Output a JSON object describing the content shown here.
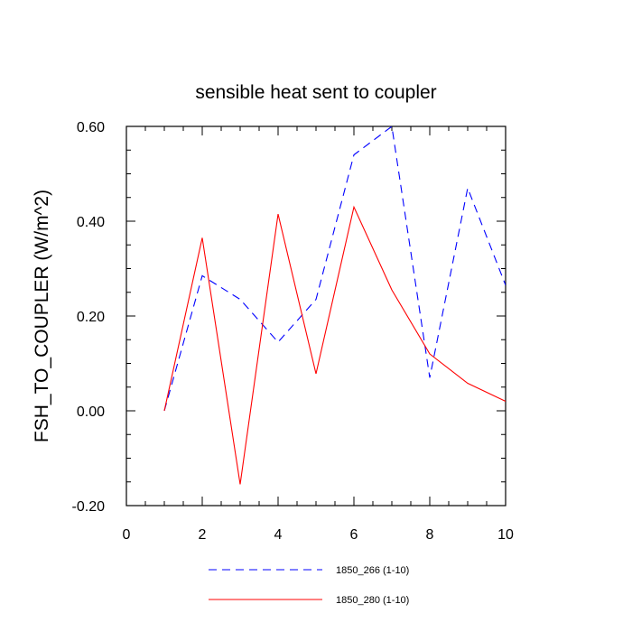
{
  "chart_data": {
    "type": "line",
    "title": "sensible heat sent to coupler",
    "xlabel": "",
    "ylabel": "FSH_TO_COUPLER  (W/m^2)",
    "xlim": [
      0,
      10
    ],
    "ylim": [
      -0.2,
      0.6
    ],
    "xticks": [
      0,
      2,
      4,
      6,
      8,
      10
    ],
    "xtick_labels": [
      "0",
      "2",
      "4",
      "6",
      "8",
      "10"
    ],
    "yticks": [
      -0.2,
      0.0,
      0.2,
      0.4,
      0.6
    ],
    "ytick_labels": [
      "-0.20",
      "0.00",
      "0.20",
      "0.40",
      "0.60"
    ],
    "grid": false,
    "legend_position": "bottom",
    "series": [
      {
        "name": "1850_266 (1-10)",
        "color": "#0000ff",
        "style": "dashed",
        "x": [
          1,
          2,
          3,
          4,
          5,
          6,
          7,
          8,
          9,
          10
        ],
        "values": [
          0.0,
          0.285,
          0.235,
          0.145,
          0.235,
          0.54,
          0.6,
          0.07,
          0.47,
          0.265
        ]
      },
      {
        "name": "1850_280 (1-10)",
        "color": "#ff0000",
        "style": "solid",
        "x": [
          1,
          2,
          3,
          4,
          5,
          6,
          7,
          8,
          9,
          10
        ],
        "values": [
          0.0,
          0.365,
          -0.155,
          0.415,
          0.078,
          0.43,
          0.255,
          0.12,
          0.058,
          0.02
        ]
      }
    ]
  }
}
